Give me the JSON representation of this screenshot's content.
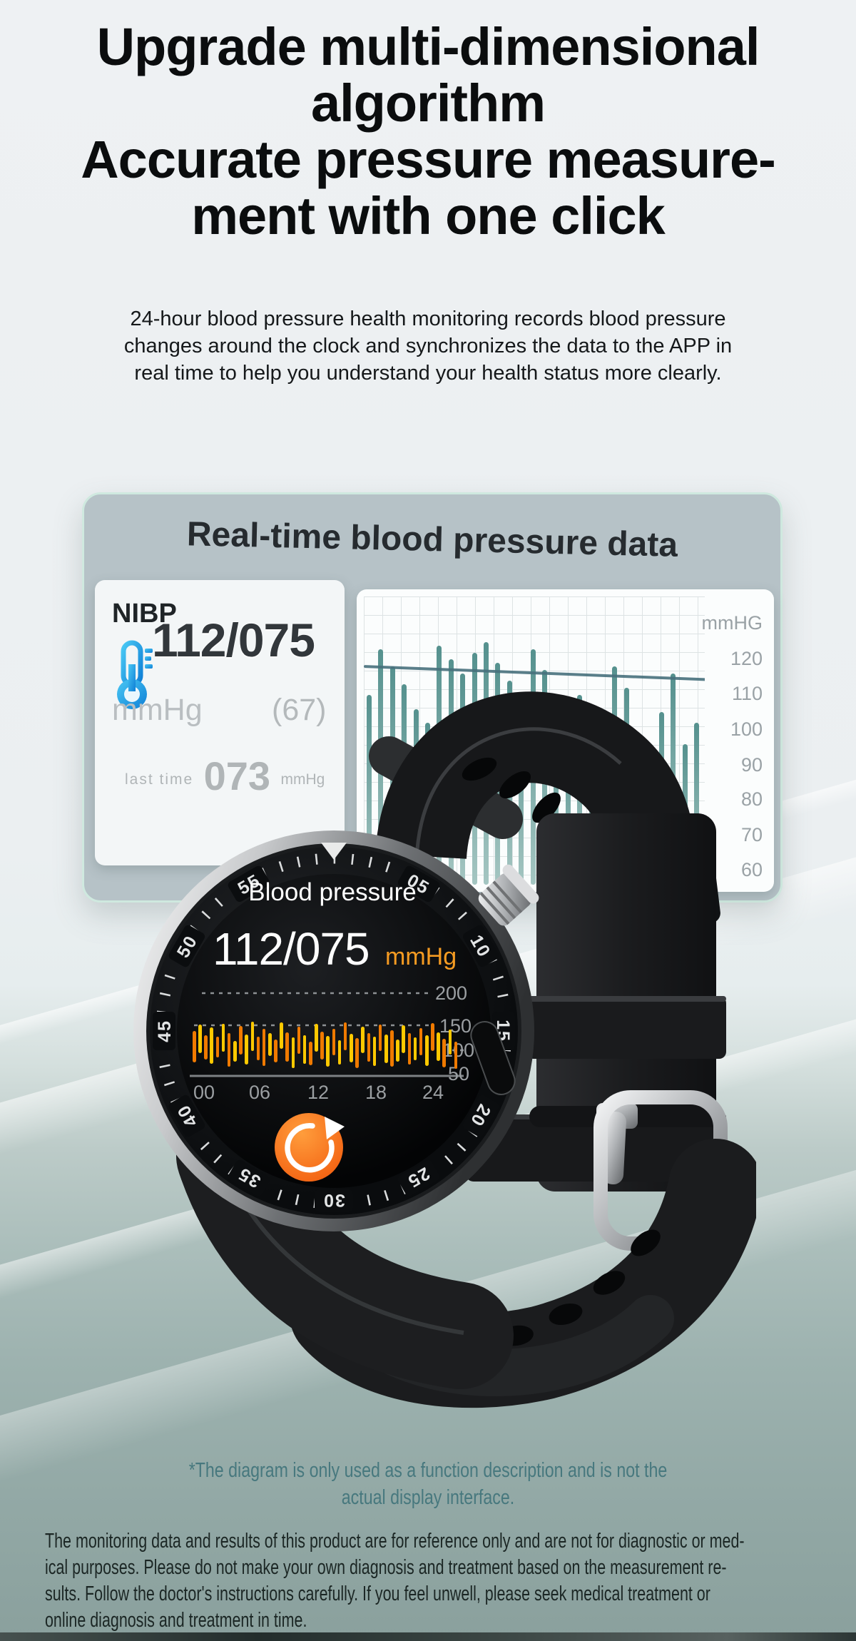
{
  "headline": {
    "line1": "Upgrade multi-dimensional",
    "line2": "algorithm",
    "line3": "Accurate pressure measure-",
    "line4": "ment with one click"
  },
  "intro": {
    "lines": [
      "24-hour blood pressure health monitoring records blood pressure",
      "changes around the clock and synchronizes the data to the APP in",
      "real time to help you understand your health status more clearly."
    ]
  },
  "card": {
    "title": "Real-time blood pressure data",
    "nibp": {
      "label": "NIBP",
      "reading": "112/075",
      "unit": "mmHg",
      "pulse": "(67)",
      "last_label": "last time",
      "last_value": "073",
      "last_unit": "mmHg"
    },
    "chart": {
      "unit_label": "mmHG",
      "y_ticks": [
        "120",
        "110",
        "100",
        "90",
        "80",
        "70",
        "60"
      ]
    }
  },
  "watch": {
    "screen_title": "Blood pressure",
    "reading": "112/075",
    "unit": "mmHg",
    "y_ticks": [
      "200",
      "150",
      "100",
      "50"
    ],
    "x_ticks": [
      "00",
      "06",
      "12",
      "18",
      "24"
    ],
    "bezel": [
      "05",
      "10",
      "15",
      "20",
      "25",
      "30",
      "35",
      "40",
      "45",
      "50",
      "55"
    ]
  },
  "footnote": {
    "lines": [
      "*The diagram is only used as a function description and is not the",
      "actual display interface."
    ]
  },
  "disclaimer": {
    "lines": [
      "The monitoring data and results of this product are for reference only and are not for diagnostic or med-",
      "ical purposes. Please do not make your own diagnosis and treatment based on the measurement re-",
      "sults. Follow the doctor's instructions carefully. If you feel unwell, please seek medical treatment or",
      "online diagnosis and treatment in time."
    ]
  },
  "colors": {
    "accent_teal_bar": "#5d938f",
    "trend_line": "#47707c",
    "card_bg": "#b6c2c7",
    "card_border": "#cfe9df",
    "orange_bar": "#f07a00",
    "yellow_bar": "#ffc900",
    "mmhg_orange": "#f59b22",
    "refresh_orange": "#f1570a",
    "thermo_blue": "#1e9be6",
    "footnote_teal": "#47787e"
  },
  "chart_data": [
    {
      "id": "bp-history",
      "type": "bar",
      "title": "Real-time blood pressure data",
      "ylabel": "mmHG",
      "ylim": [
        56,
        137
      ],
      "y_ticks": [
        120,
        110,
        100,
        90,
        80,
        70,
        60
      ],
      "trend_line_level": 120,
      "values": [
        112,
        125,
        120,
        115,
        108,
        104,
        126,
        122,
        118,
        124,
        127,
        121,
        116,
        110,
        125,
        119,
        105,
        99,
        112,
        103,
        96,
        120,
        114,
        100,
        94,
        107,
        118,
        98,
        104
      ]
    },
    {
      "id": "watch-bars",
      "type": "bar",
      "title": "Blood pressure (watch 24h)",
      "x_ticks": [
        "00",
        "06",
        "12",
        "18",
        "24"
      ],
      "y_ticks": [
        200,
        150,
        100,
        50
      ],
      "ylim": [
        50,
        200
      ],
      "bars": [
        {
          "hi": 128,
          "lo": 70,
          "c": "o"
        },
        {
          "hi": 140,
          "lo": 88,
          "c": "y"
        },
        {
          "hi": 120,
          "lo": 75,
          "c": "o"
        },
        {
          "hi": 135,
          "lo": 68,
          "c": "y"
        },
        {
          "hi": 118,
          "lo": 80,
          "c": "o"
        },
        {
          "hi": 142,
          "lo": 90,
          "c": "y"
        },
        {
          "hi": 125,
          "lo": 62,
          "c": "o"
        },
        {
          "hi": 110,
          "lo": 72,
          "c": "y"
        },
        {
          "hi": 138,
          "lo": 85,
          "c": "o"
        },
        {
          "hi": 122,
          "lo": 66,
          "c": "y"
        },
        {
          "hi": 146,
          "lo": 92,
          "c": "y"
        },
        {
          "hi": 118,
          "lo": 74,
          "c": "o"
        },
        {
          "hi": 132,
          "lo": 64,
          "c": "o"
        },
        {
          "hi": 124,
          "lo": 82,
          "c": "y"
        },
        {
          "hi": 112,
          "lo": 70,
          "c": "o"
        },
        {
          "hi": 144,
          "lo": 95,
          "c": "y"
        },
        {
          "hi": 126,
          "lo": 72,
          "c": "o"
        },
        {
          "hi": 116,
          "lo": 60,
          "c": "y"
        },
        {
          "hi": 136,
          "lo": 86,
          "c": "o"
        },
        {
          "hi": 121,
          "lo": 68,
          "c": "y"
        },
        {
          "hi": 108,
          "lo": 65,
          "c": "o"
        },
        {
          "hi": 142,
          "lo": 90,
          "c": "y"
        },
        {
          "hi": 127,
          "lo": 75,
          "c": "o"
        },
        {
          "hi": 119,
          "lo": 62,
          "c": "y"
        },
        {
          "hi": 133,
          "lo": 84,
          "c": "o"
        },
        {
          "hi": 111,
          "lo": 66,
          "c": "y"
        },
        {
          "hi": 145,
          "lo": 93,
          "c": "o"
        },
        {
          "hi": 123,
          "lo": 70,
          "c": "y"
        },
        {
          "hi": 115,
          "lo": 60,
          "c": "o"
        },
        {
          "hi": 137,
          "lo": 88,
          "c": "y"
        },
        {
          "hi": 125,
          "lo": 72,
          "c": "o"
        },
        {
          "hi": 118,
          "lo": 64,
          "c": "y"
        },
        {
          "hi": 141,
          "lo": 91,
          "c": "o"
        },
        {
          "hi": 122,
          "lo": 69,
          "c": "y"
        },
        {
          "hi": 130,
          "lo": 62,
          "c": "o"
        },
        {
          "hi": 113,
          "lo": 71,
          "c": "y"
        },
        {
          "hi": 139,
          "lo": 87,
          "c": "y"
        },
        {
          "hi": 124,
          "lo": 66,
          "c": "o"
        },
        {
          "hi": 117,
          "lo": 74,
          "c": "y"
        },
        {
          "hi": 134,
          "lo": 83,
          "c": "o"
        },
        {
          "hi": 120,
          "lo": 63,
          "c": "y"
        },
        {
          "hi": 143,
          "lo": 92,
          "c": "o"
        },
        {
          "hi": 126,
          "lo": 73,
          "c": "y"
        },
        {
          "hi": 114,
          "lo": 61,
          "c": "o"
        },
        {
          "hi": 131,
          "lo": 85,
          "c": "y"
        },
        {
          "hi": 109,
          "lo": 58,
          "c": "o"
        }
      ]
    }
  ]
}
